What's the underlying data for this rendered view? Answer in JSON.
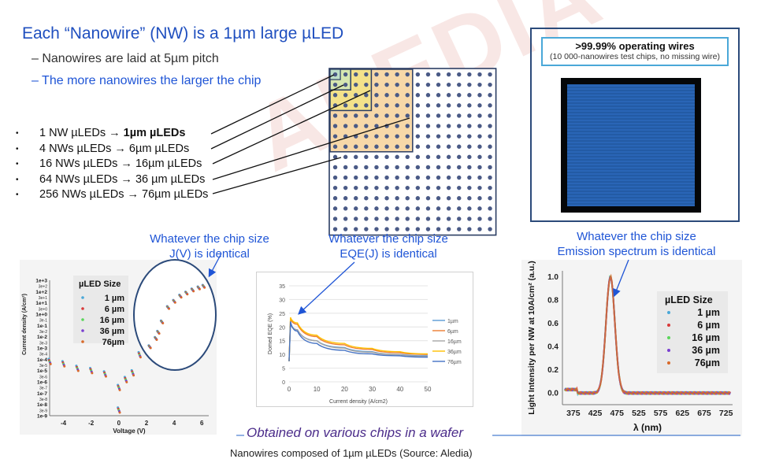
{
  "title": "Each “Nanowire” (NW) is a 1µm large µLED",
  "subs": [
    "– Nanowires are laid at 5µm pitch",
    "– The more nanowires the larger the chip"
  ],
  "bullets": [
    {
      "lead": "1 NW µLEDs → ",
      "bold": "1µm µLEDs",
      "rest": ""
    },
    {
      "lead": "4 NWs µLEDs → 6µm µLEDs",
      "bold": "",
      "rest": ""
    },
    {
      "lead": "16 NWs µLEDs → 16µm µLEDs",
      "bold": "",
      "rest": ""
    },
    {
      "lead": "64 NWs µLEDs → 36 µm µLEDs",
      "bold": "",
      "rest": ""
    },
    {
      "lead": "256 NWs µLEDs → 76µm µLEDs",
      "bold": "",
      "rest": ""
    }
  ],
  "panel": {
    "headline": ">99.99% operating wires",
    "subline": "(10 000-nanowires test chips, no missing wire)"
  },
  "captions": {
    "jv": [
      "Whatever the chip size",
      "J(V) is identical"
    ],
    "eqe": [
      "Whatever the chip size",
      "EQE(J) is identical"
    ],
    "spec": [
      "Whatever the chip size",
      "Emission spectrum is identical"
    ]
  },
  "footer": "Obtained on various chips in a wafer",
  "bottom_cut": "Nanowires composed of 1µm µLEDs (Source: Aledia)",
  "watermark": "ALEDIA",
  "colors": {
    "accent": "#1f55d6",
    "dot": "#4a5a86",
    "square_fill": "#f7d8a8",
    "panel_blue": "#2d6fc4"
  },
  "chart_data": [
    {
      "type": "scatter",
      "name_id": "jv",
      "xlabel": "Voltage (V)",
      "ylabel": "Current density (A/cm²)",
      "xlim": [
        -5,
        6.5
      ],
      "x_ticks": [
        -4,
        -2,
        0,
        2,
        4,
        6
      ],
      "y_ticks": [
        "1e+3",
        "3e+2",
        "1e+2",
        "3e+1",
        "1e+1",
        "3e+0",
        "1e+0",
        "3e-1",
        "1e-1",
        "3e-2",
        "1e-2",
        "3e-3",
        "1e-3",
        "3e-4",
        "1e-4",
        "3e-5",
        "1e-5",
        "3e-6",
        "1e-6",
        "3e-7",
        "1e-7",
        "3e-8",
        "1e-8",
        "3e-9",
        "1e-9"
      ],
      "legend_title": "µLED Size",
      "legend": [
        "1 µm",
        "6 µm",
        "16 µm",
        "36 µm",
        "76µm"
      ],
      "series_colors": [
        "#4aa8d8",
        "#d93a3a",
        "#5bd65b",
        "#7a3fd0",
        "#d96a2a"
      ],
      "points": [
        [
          -5,
          -4.2
        ],
        [
          -4,
          -4.4
        ],
        [
          -3,
          -4.8
        ],
        [
          -2,
          -5.0
        ],
        [
          -1,
          -5.3
        ],
        [
          0,
          -6.5
        ],
        [
          0,
          -8.5
        ],
        [
          0.5,
          -5.8
        ],
        [
          1,
          -5.2
        ],
        [
          1.5,
          -3.6
        ],
        [
          2,
          -2.8
        ],
        [
          2.2,
          -2.2
        ],
        [
          2.5,
          -1.2
        ],
        [
          3,
          0.2
        ],
        [
          3.5,
          0.8
        ],
        [
          4,
          1.3
        ],
        [
          4.5,
          1.6
        ],
        [
          5,
          1.9
        ],
        [
          5.5,
          2.1
        ],
        [
          5.9,
          2.25
        ]
      ]
    },
    {
      "type": "line",
      "name_id": "eqe",
      "xlabel": "Current density (A/cm2)",
      "ylabel": "Domed EQE (%)",
      "xlim": [
        0,
        50
      ],
      "ylim": [
        0,
        35
      ],
      "x_ticks": [
        0,
        10,
        20,
        30,
        40,
        50
      ],
      "y_ticks": [
        0,
        5,
        10,
        15,
        20,
        25,
        30,
        35
      ],
      "series": [
        {
          "name": "1µm",
          "color": "#5b9bd5",
          "values": [
            [
              0.5,
              21
            ],
            [
              3,
              19
            ],
            [
              10,
              15
            ],
            [
              20,
              12.5
            ],
            [
              30,
              11
            ],
            [
              40,
              10
            ],
            [
              50,
              9.5
            ]
          ]
        },
        {
          "name": "6µm",
          "color": "#ed7d31",
          "values": [
            [
              0.5,
              23
            ],
            [
              3,
              21
            ],
            [
              10,
              16.5
            ],
            [
              20,
              13.5
            ],
            [
              30,
              11.8
            ],
            [
              40,
              10.6
            ],
            [
              50,
              10
            ]
          ]
        },
        {
          "name": "16µm",
          "color": "#a5a5a5",
          "values": [
            [
              0.5,
              21.5
            ],
            [
              3,
              19
            ],
            [
              10,
              15
            ],
            [
              20,
              12.3
            ],
            [
              30,
              10.8
            ],
            [
              40,
              9.9
            ],
            [
              50,
              9.3
            ]
          ]
        },
        {
          "name": "36µm",
          "color": "#ffc000",
          "values": [
            [
              0.5,
              23.5
            ],
            [
              3,
              21.5
            ],
            [
              10,
              17
            ],
            [
              20,
              14
            ],
            [
              30,
              12.2
            ],
            [
              40,
              11
            ],
            [
              50,
              10.2
            ]
          ]
        },
        {
          "name": "76µm",
          "color": "#4472c4",
          "values": [
            [
              0.5,
              22
            ],
            [
              3,
              18.5
            ],
            [
              10,
              14
            ],
            [
              20,
              11.5
            ],
            [
              30,
              10.2
            ],
            [
              40,
              9.5
            ],
            [
              50,
              9
            ]
          ]
        }
      ]
    },
    {
      "type": "line",
      "name_id": "spec",
      "xlabel": "λ (nm)",
      "ylabel": "Light Intensity per NW at 10A/cm² (a.u.)",
      "xlim": [
        350,
        740
      ],
      "ylim": [
        -0.1,
        1.05
      ],
      "x_ticks": [
        375,
        425,
        475,
        525,
        575,
        625,
        675,
        725
      ],
      "y_ticks": [
        0.0,
        0.2,
        0.4,
        0.6,
        0.8,
        1.0
      ],
      "legend_title": "µLED Size",
      "legend": [
        "1 µm",
        "6 µm",
        "16 µm",
        "36 µm",
        "76µm"
      ],
      "series_colors": [
        "#4aa8d8",
        "#d93a3a",
        "#5bd65b",
        "#7a3fd0",
        "#d96a2a"
      ],
      "peak_nm": 460,
      "fwhm_nm": 24
    }
  ]
}
